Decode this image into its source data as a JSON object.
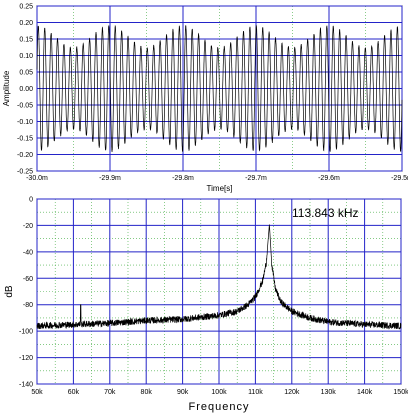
{
  "chart_data": [
    {
      "type": "line",
      "title": "",
      "xlabel": "Time[s]",
      "ylabel": "Amplitude",
      "x_unit": "ms",
      "xlim": [
        -30.0,
        -29.5
      ],
      "ylim": [
        -0.25,
        0.25
      ],
      "x_ticks": [
        -30.0,
        -29.9,
        -29.8,
        -29.7,
        -29.6,
        -29.5
      ],
      "x_tick_labels": [
        "-30.0m",
        "-29.9m",
        "-29.8m",
        "-29.7m",
        "-29.6m",
        "-29.5m"
      ],
      "y_ticks": [
        -0.25,
        -0.2,
        -0.15,
        -0.1,
        -0.05,
        0.0,
        0.05,
        0.1,
        0.15,
        0.2,
        0.25
      ],
      "y_tick_labels": [
        "-0.25",
        "-0.20",
        "-0.15",
        "-0.10",
        "-0.05",
        "0.00",
        "0.05",
        "0.10",
        "0.15",
        "0.20",
        "0.25"
      ],
      "grid": true,
      "series": [
        {
          "carrier_frequency_khz": 113.843,
          "peak_amplitude": 0.19,
          "modulation_depth": 0.35,
          "modulation_period_ms": 0.1,
          "color": "#000000"
        }
      ]
    },
    {
      "type": "line",
      "title": "",
      "xlabel": "Frequency",
      "ylabel": "dB",
      "xlim": [
        50,
        150
      ],
      "x_unit": "kHz",
      "ylim": [
        -140,
        0
      ],
      "x_ticks": [
        50,
        60,
        70,
        80,
        90,
        100,
        110,
        120,
        130,
        140,
        150
      ],
      "x_tick_labels": [
        "50k",
        "60k",
        "70k",
        "80k",
        "90k",
        "100k",
        "110k",
        "120k",
        "130k",
        "140k",
        "150k"
      ],
      "y_ticks": [
        -140,
        -120,
        -100,
        -80,
        -60,
        -40,
        -20,
        0
      ],
      "y_tick_labels": [
        "-140",
        "-120",
        "-100",
        "-80",
        "-60",
        "-40",
        "-20",
        "0"
      ],
      "grid": true,
      "annotation": "113.843 kHz",
      "series": [
        {
          "peak_frequency_khz": 113.843,
          "peak_db": -19,
          "noise_floor_db_at_50k": -96,
          "noise_floor_db_at_100k": -88,
          "noise_floor_db_at_150k": -96,
          "spur_frequency_khz": 62,
          "spur_db": -80,
          "points": [
            [
              50,
              -96
            ],
            [
              60,
              -95
            ],
            [
              70,
              -94
            ],
            [
              80,
              -92
            ],
            [
              90,
              -91
            ],
            [
              100,
              -88
            ],
            [
              105,
              -85
            ],
            [
              108,
              -80
            ],
            [
              110,
              -74
            ],
            [
              112,
              -62
            ],
            [
              113,
              -48
            ],
            [
              113.843,
              -19
            ],
            [
              114.5,
              -50
            ],
            [
              115.5,
              -68
            ],
            [
              117,
              -78
            ],
            [
              120,
              -85
            ],
            [
              125,
              -90
            ],
            [
              130,
              -93
            ],
            [
              140,
              -95
            ],
            [
              150,
              -96
            ]
          ],
          "color": "#000000"
        }
      ]
    }
  ],
  "colors": {
    "axis_grid": "#2323c8",
    "minor_grid": "#3caa3c",
    "trace": "#000000"
  }
}
